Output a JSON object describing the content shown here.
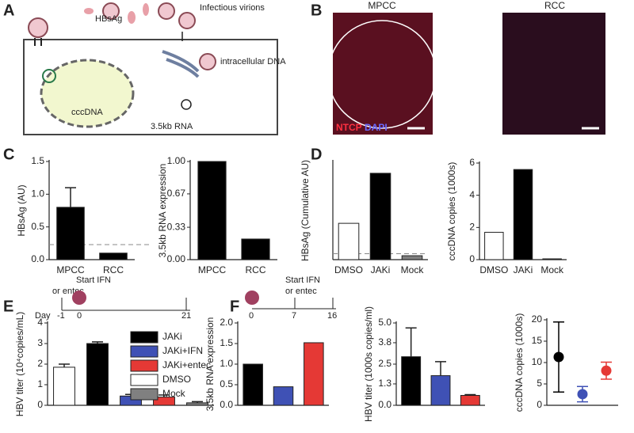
{
  "panels": [
    "A",
    "B",
    "C",
    "D",
    "E",
    "F"
  ],
  "diagram": {
    "hbsag": "HBsAg",
    "virions": "Infectious virions",
    "intracellular": "intracellular DNA",
    "cccdna": "cccDNA",
    "rna": "3.5kb RNA"
  },
  "micrographs": {
    "left": "MPCC",
    "right": "RCC",
    "stain1": "NTCP",
    "stain2": "DAPI"
  },
  "chart_data": [
    {
      "type": "bar",
      "ylabel": "HBsAg (AU)",
      "categories": [
        "MPCC",
        "RCC"
      ],
      "values": [
        0.8,
        0.1
      ],
      "errors": [
        0.3,
        null
      ],
      "colors": [
        "#000000",
        "#000000"
      ],
      "ylim": [
        0,
        1.5
      ],
      "yticks": [
        {
          "value": 0,
          "label": "0.0"
        },
        {
          "value": 0.5,
          "label": "0.5"
        },
        {
          "value": 1,
          "label": "1.0"
        },
        {
          "value": 1.5,
          "label": "1.5"
        }
      ],
      "reference_line": 0.23
    },
    {
      "type": "bar",
      "ylabel": "3.5kb RNA expression",
      "categories": [
        "MPCC",
        "RCC"
      ],
      "values": [
        1.0,
        0.21
      ],
      "colors": [
        "#000000",
        "#000000"
      ],
      "ylim": [
        0,
        1
      ],
      "yticks": [
        {
          "value": 0,
          "label": "0.00"
        },
        {
          "value": 0.33,
          "label": "0.33"
        },
        {
          "value": 0.67,
          "label": "0.67"
        },
        {
          "value": 1,
          "label": "1.00"
        }
      ]
    },
    {
      "type": "bar",
      "ylabel": "HBsAg (Cumulative AU)",
      "categories": [
        "DMSO",
        "JAKi",
        "Mock"
      ],
      "values": [
        3.7,
        8.8,
        0.4
      ],
      "colors": [
        "#ffffff",
        "#000000",
        "#808080"
      ],
      "ylim": [
        0,
        10
      ],
      "reference_line": 0.6
    },
    {
      "type": "bar",
      "ylabel": "cccDNA copies (1000s)",
      "categories": [
        "DMSO",
        "JAKi",
        "Mock"
      ],
      "values": [
        1.7,
        5.6,
        0.05
      ],
      "colors": [
        "#ffffff",
        "#000000",
        "#808080"
      ],
      "ylim": [
        0,
        6
      ],
      "yticks": [
        0,
        2,
        4,
        6
      ]
    },
    {
      "type": "bar",
      "ylabel": "HBV titer (10⁴copies/mL)",
      "values": [
        1.85,
        3.0,
        0.45,
        0.4,
        0.12
      ],
      "errors": [
        0.15,
        0.08,
        0.08,
        0.1,
        0.06
      ],
      "colors": [
        "#ffffff",
        "#000000",
        "#3f51b5",
        "#e53935",
        "#808080"
      ],
      "ylim": [
        0,
        4
      ],
      "yticks": [
        0,
        1,
        2,
        3,
        4
      ],
      "legend": [
        {
          "name": "JAKi",
          "color": "#000000"
        },
        {
          "name": "JAKi+IFN",
          "color": "#3f51b5"
        },
        {
          "name": "JAKi+entec",
          "color": "#e53935"
        },
        {
          "name": "DMSO",
          "color": "#ffffff"
        },
        {
          "name": "Mock",
          "color": "#808080"
        }
      ],
      "timeline": {
        "labels": [
          "Start IFN",
          "or entec"
        ],
        "day": "Day",
        "days": [
          "-1",
          "0",
          "21"
        ]
      }
    },
    {
      "type": "bar",
      "ylabel": "3.5kb RNA expression",
      "values": [
        1.0,
        0.45,
        1.52
      ],
      "colors": [
        "#000000",
        "#3f51b5",
        "#e53935"
      ],
      "ylim": [
        0,
        2
      ],
      "yticks": [
        {
          "value": 0,
          "label": "0.0"
        },
        {
          "value": 0.5,
          "label": "0.5"
        },
        {
          "value": 1,
          "label": "1.0"
        },
        {
          "value": 1.5,
          "label": "1.5"
        },
        {
          "value": 2,
          "label": "2.0"
        }
      ],
      "timeline": {
        "labels": [
          "Start IFN",
          "or entec"
        ],
        "days": [
          "0",
          "7",
          "16"
        ]
      }
    },
    {
      "type": "bar",
      "ylabel": "HBV titer (1000s copies/ml)",
      "values": [
        2.95,
        1.8,
        0.6
      ],
      "errors": [
        1.75,
        0.85,
        0.05
      ],
      "colors": [
        "#000000",
        "#3f51b5",
        "#e53935"
      ],
      "ylim": [
        0,
        5
      ],
      "yticks": [
        {
          "value": 0,
          "label": "0.0"
        },
        {
          "value": 1.3,
          "label": "1.3"
        },
        {
          "value": 2.5,
          "label": "2.5"
        },
        {
          "value": 3.8,
          "label": "3.8"
        },
        {
          "value": 5,
          "label": "5.0"
        }
      ]
    },
    {
      "type": "scatter",
      "ylabel": "cccDNA copies (1000s)",
      "values": [
        11.3,
        2.6,
        8.1
      ],
      "errors": [
        8.2,
        1.8,
        2.0
      ],
      "colors": [
        "#000000",
        "#3f51b5",
        "#e53935"
      ],
      "ylim": [
        0,
        20
      ],
      "yticks": [
        0,
        5,
        10,
        15,
        20
      ]
    }
  ]
}
